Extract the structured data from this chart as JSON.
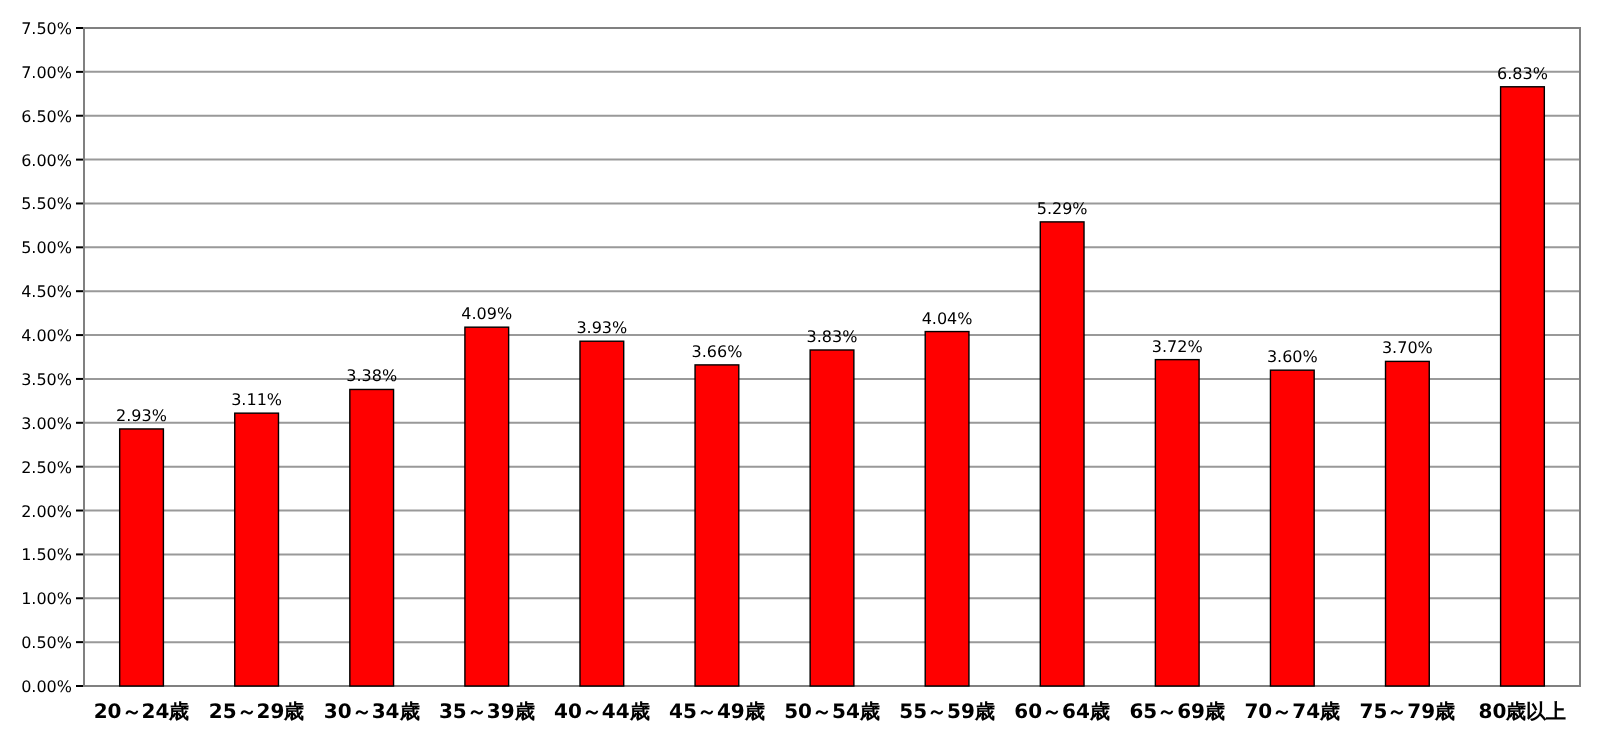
{
  "chart_data": {
    "type": "bar",
    "categories": [
      "20～24歳",
      "25～29歳",
      "30～34歳",
      "35～39歳",
      "40～44歳",
      "45～49歳",
      "50～54歳",
      "55～59歳",
      "60～64歳",
      "65～69歳",
      "70～74歳",
      "75～79歳",
      "80歳以上"
    ],
    "values": [
      2.93,
      3.11,
      3.38,
      4.09,
      3.93,
      3.66,
      3.83,
      4.04,
      5.29,
      3.72,
      3.6,
      3.7,
      6.83
    ],
    "value_labels": [
      "2.93%",
      "3.11%",
      "3.38%",
      "4.09%",
      "3.93%",
      "3.66%",
      "3.83%",
      "4.04%",
      "5.29%",
      "3.72%",
      "3.60%",
      "3.70%",
      "6.83%"
    ],
    "color": "#ff0000",
    "ylim": [
      0,
      7.5
    ],
    "yticks": [
      {
        "value": 0,
        "label": "0.00%"
      },
      {
        "value": 0.5,
        "label": "0.50%"
      },
      {
        "value": 1,
        "label": "1.00%"
      },
      {
        "value": 1.5,
        "label": "1.50%"
      },
      {
        "value": 2,
        "label": "2.00%"
      },
      {
        "value": 2.5,
        "label": "2.50%"
      },
      {
        "value": 3,
        "label": "3.00%"
      },
      {
        "value": 3.5,
        "label": "3.50%"
      },
      {
        "value": 4,
        "label": "4.00%"
      },
      {
        "value": 4.5,
        "label": "4.50%"
      },
      {
        "value": 5,
        "label": "5.00%"
      },
      {
        "value": 5.5,
        "label": "5.50%"
      },
      {
        "value": 6,
        "label": "6.00%"
      },
      {
        "value": 6.5,
        "label": "6.50%"
      },
      {
        "value": 7,
        "label": "7.00%"
      },
      {
        "value": 7.5,
        "label": "7.50%"
      }
    ],
    "grid": "y"
  }
}
